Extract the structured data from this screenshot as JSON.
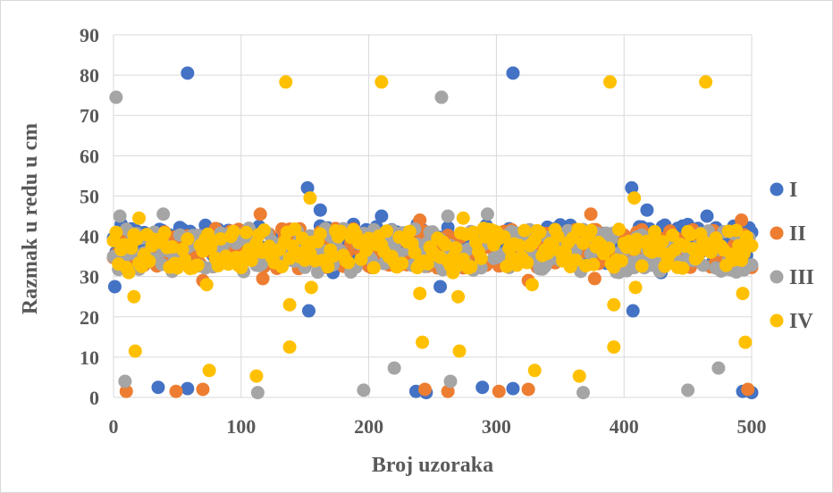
{
  "chart_data": {
    "type": "scatter",
    "title": "",
    "xlabel": "Broj uzoraka",
    "ylabel": "Razmak u redu u cm",
    "xlim": [
      0,
      500
    ],
    "ylim": [
      0,
      90
    ],
    "x_ticks": [
      0,
      100,
      200,
      300,
      400,
      500
    ],
    "y_ticks": [
      0,
      10,
      20,
      30,
      40,
      50,
      60,
      70,
      80,
      90
    ],
    "grid": "horizontal and vertical",
    "legend": "right",
    "series": [
      {
        "name": "I",
        "color": "#4472c4",
        "base_range": [
          33,
          43
        ],
        "outliers": [
          [
            1,
            27.5
          ],
          [
            35,
            2.5
          ],
          [
            58,
            80.5
          ],
          [
            58,
            2.2
          ],
          [
            152,
            52
          ],
          [
            153,
            21.5
          ],
          [
            162,
            46.5
          ],
          [
            172,
            31
          ],
          [
            210,
            45
          ],
          [
            237,
            1.5
          ],
          [
            245,
            1.2
          ],
          [
            256,
            27.5
          ],
          [
            289,
            2.5
          ],
          [
            313,
            80.5
          ],
          [
            313,
            2.2
          ],
          [
            406,
            52
          ],
          [
            407,
            21.5
          ],
          [
            418,
            46.5
          ],
          [
            429,
            31
          ],
          [
            465,
            45
          ],
          [
            493,
            1.5
          ],
          [
            500,
            1.2
          ]
        ]
      },
      {
        "name": "II",
        "color": "#ed7d31",
        "base_range": [
          32,
          42
        ],
        "outliers": [
          [
            2,
            35.5
          ],
          [
            10,
            1.5
          ],
          [
            49,
            1.5
          ],
          [
            70,
            2.0
          ],
          [
            70,
            29
          ],
          [
            115,
            45.5
          ],
          [
            117,
            29.5
          ],
          [
            145,
            32
          ],
          [
            240,
            44
          ],
          [
            244,
            2.0
          ],
          [
            262,
            1.5
          ],
          [
            302,
            1.5
          ],
          [
            325,
            2.0
          ],
          [
            325,
            29
          ],
          [
            374,
            45.5
          ],
          [
            377,
            29.5
          ],
          [
            398,
            32
          ],
          [
            492,
            44
          ],
          [
            497,
            2.0
          ]
        ]
      },
      {
        "name": "III",
        "color": "#a5a5a5",
        "base_range": [
          31,
          42
        ],
        "outliers": [
          [
            2,
            74.5
          ],
          [
            5,
            45
          ],
          [
            9,
            4
          ],
          [
            39,
            45.5
          ],
          [
            113,
            1.2
          ],
          [
            196,
            1.8
          ],
          [
            220,
            7.3
          ],
          [
            257,
            74.5
          ],
          [
            262,
            45
          ],
          [
            264,
            4
          ],
          [
            293,
            45.5
          ],
          [
            368,
            1.2
          ],
          [
            450,
            1.8
          ],
          [
            474,
            7.3
          ]
        ]
      },
      {
        "name": "IV",
        "color": "#ffc000",
        "base_range": [
          32,
          42
        ],
        "outliers": [
          [
            12,
            31
          ],
          [
            16,
            25
          ],
          [
            17,
            11.5
          ],
          [
            20,
            44.5
          ],
          [
            73,
            28
          ],
          [
            75,
            6.7
          ],
          [
            112,
            5.3
          ],
          [
            135,
            78.3
          ],
          [
            138,
            12.5
          ],
          [
            138,
            23
          ],
          [
            154,
            49.5
          ],
          [
            155,
            27.3
          ],
          [
            210,
            78.3
          ],
          [
            240,
            25.8
          ],
          [
            242,
            13.7
          ],
          [
            266,
            31
          ],
          [
            270,
            25
          ],
          [
            271,
            11.5
          ],
          [
            274,
            44.5
          ],
          [
            328,
            28
          ],
          [
            330,
            6.7
          ],
          [
            365,
            5.3
          ],
          [
            389,
            78.3
          ],
          [
            392,
            12.5
          ],
          [
            392,
            23
          ],
          [
            408,
            49.5
          ],
          [
            409,
            27.3
          ],
          [
            464,
            78.3
          ],
          [
            493,
            25.8
          ],
          [
            495,
            13.7
          ]
        ]
      }
    ]
  }
}
